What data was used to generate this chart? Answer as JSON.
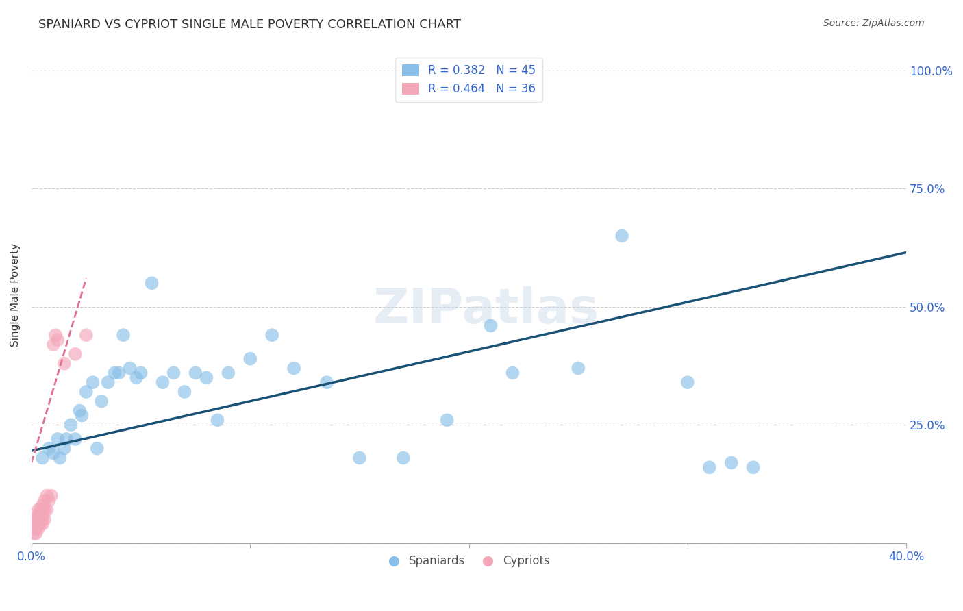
{
  "title": "SPANIARD VS CYPRIOT SINGLE MALE POVERTY CORRELATION CHART",
  "source": "Source: ZipAtlas.com",
  "ylabel": "Single Male Poverty",
  "xlim": [
    0.0,
    0.4
  ],
  "ylim": [
    0.0,
    1.05
  ],
  "blue_R": 0.382,
  "blue_N": 45,
  "pink_R": 0.464,
  "pink_N": 36,
  "blue_color": "#89bfe8",
  "pink_color": "#f4a7b9",
  "blue_line_color": "#1a5276",
  "pink_line_color": "#e07090",
  "grid_color": "#cccccc",
  "bg_color": "#ffffff",
  "spaniards_x": [
    0.005,
    0.008,
    0.01,
    0.012,
    0.013,
    0.015,
    0.016,
    0.018,
    0.02,
    0.022,
    0.023,
    0.025,
    0.028,
    0.03,
    0.032,
    0.035,
    0.038,
    0.04,
    0.042,
    0.045,
    0.048,
    0.05,
    0.055,
    0.06,
    0.065,
    0.07,
    0.075,
    0.08,
    0.085,
    0.09,
    0.1,
    0.11,
    0.12,
    0.135,
    0.15,
    0.17,
    0.19,
    0.21,
    0.22,
    0.25,
    0.27,
    0.3,
    0.31,
    0.32,
    0.33
  ],
  "spaniards_y": [
    0.18,
    0.2,
    0.19,
    0.22,
    0.18,
    0.2,
    0.22,
    0.25,
    0.22,
    0.28,
    0.27,
    0.32,
    0.34,
    0.2,
    0.3,
    0.34,
    0.36,
    0.36,
    0.44,
    0.37,
    0.35,
    0.36,
    0.55,
    0.34,
    0.36,
    0.32,
    0.36,
    0.35,
    0.26,
    0.36,
    0.39,
    0.44,
    0.37,
    0.34,
    0.18,
    0.18,
    0.26,
    0.46,
    0.36,
    0.37,
    0.65,
    0.34,
    0.16,
    0.17,
    0.16
  ],
  "cypriots_x": [
    0.001,
    0.001,
    0.001,
    0.001,
    0.002,
    0.002,
    0.002,
    0.002,
    0.002,
    0.003,
    0.003,
    0.003,
    0.003,
    0.003,
    0.004,
    0.004,
    0.004,
    0.004,
    0.005,
    0.005,
    0.005,
    0.005,
    0.005,
    0.006,
    0.006,
    0.006,
    0.007,
    0.007,
    0.008,
    0.009,
    0.01,
    0.011,
    0.012,
    0.015,
    0.02,
    0.025
  ],
  "cypriots_y": [
    0.02,
    0.03,
    0.04,
    0.05,
    0.02,
    0.03,
    0.04,
    0.04,
    0.05,
    0.03,
    0.04,
    0.05,
    0.06,
    0.07,
    0.04,
    0.05,
    0.06,
    0.07,
    0.04,
    0.05,
    0.06,
    0.07,
    0.08,
    0.05,
    0.07,
    0.09,
    0.07,
    0.1,
    0.09,
    0.1,
    0.42,
    0.44,
    0.43,
    0.38,
    0.4,
    0.44
  ],
  "blue_trendline": [
    0.0,
    0.4,
    0.195,
    0.615
  ],
  "pink_trendline_x": [
    0.0,
    0.025
  ],
  "pink_trendline_y": [
    0.17,
    0.56
  ]
}
